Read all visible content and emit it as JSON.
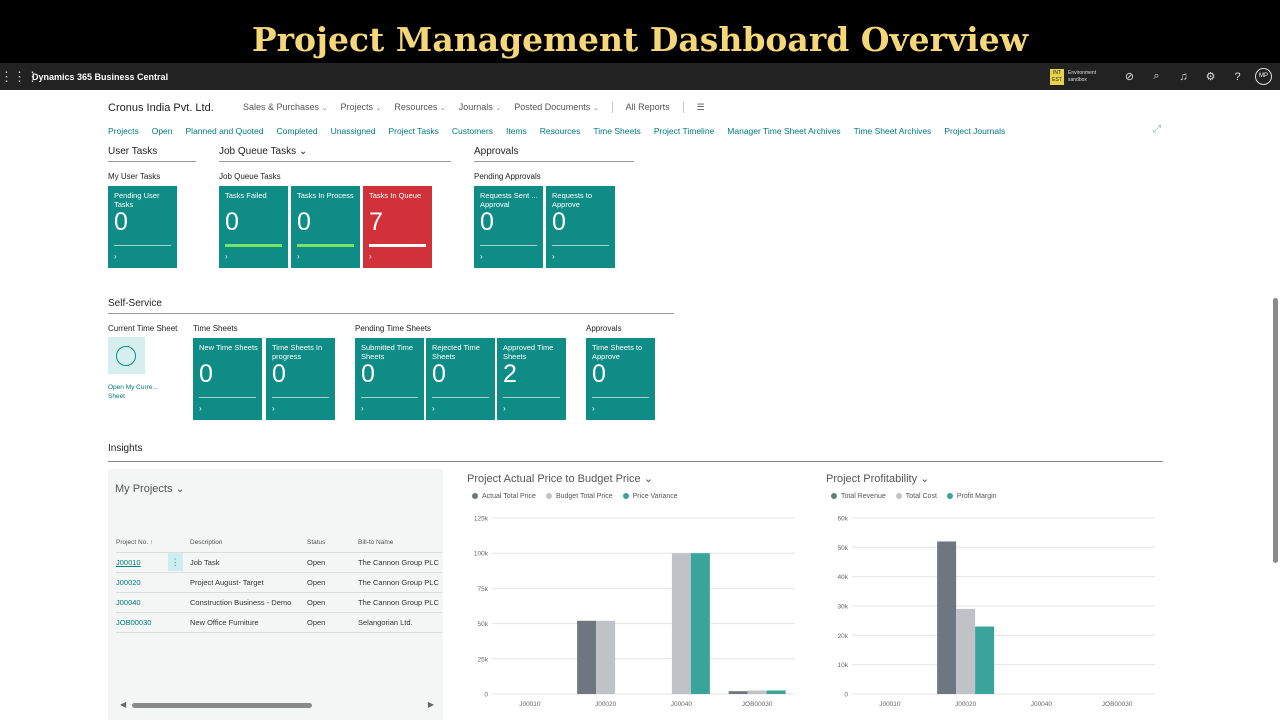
{
  "banner": "Project Management Dashboard Overview",
  "app": {
    "name": "Dynamics 365 Business Central",
    "env_badge": "INT EST",
    "env_label": "Environment",
    "env_name": "sandbox",
    "user_initials": "MP",
    "icons": [
      "waffle-icon",
      "copilot-icon",
      "search-icon",
      "bell-icon",
      "gear-icon",
      "help-icon"
    ]
  },
  "company": "Cronus India Pvt. Ltd.",
  "nav": [
    "Sales & Purchases",
    "Projects",
    "Resources",
    "Journals",
    "Posted Documents"
  ],
  "nav_reports": "All Reports",
  "sublinks": [
    "Projects",
    "Open",
    "Planned and Quoted",
    "Completed",
    "Unassigned",
    "Project Tasks",
    "Customers",
    "Items",
    "Resources",
    "Time Sheets",
    "Project Timeline",
    "Manager Time Sheet Archives",
    "Time Sheet Archives",
    "Project Journals"
  ],
  "sections": {
    "user_tasks": "User Tasks",
    "job_queue": "Job Queue Tasks",
    "approvals": "Approvals",
    "self_service": "Self-Service",
    "insights": "Insights"
  },
  "groups": {
    "my_user_tasks": "My User Tasks",
    "job_queue_tasks": "Job Queue Tasks",
    "pending_approvals": "Pending Approvals",
    "current_time_sheet": "Current Time Sheet",
    "time_sheets": "Time Sheets",
    "pending_time_sheets": "Pending Time Sheets",
    "approvals": "Approvals"
  },
  "tiles": {
    "pending_user_tasks": {
      "label": "Pending User Tasks",
      "value": "0"
    },
    "tasks_failed": {
      "label": "Tasks Failed",
      "value": "0"
    },
    "tasks_in_process": {
      "label": "Tasks In Process",
      "value": "0"
    },
    "tasks_in_queue": {
      "label": "Tasks In Queue",
      "value": "7"
    },
    "requests_sent": {
      "label": "Requests Sent ... Approval",
      "value": "0"
    },
    "requests_to_approve": {
      "label": "Requests to Approve",
      "value": "0"
    },
    "new_time_sheets": {
      "label": "New Time Sheets",
      "value": "0"
    },
    "time_sheets_in_progress": {
      "label": "Time Sheets In progress",
      "value": "0"
    },
    "submitted_time_sheets": {
      "label": "Submitted Time Sheets",
      "value": "0"
    },
    "rejected_time_sheets": {
      "label": "Rejected Time Sheets",
      "value": "0"
    },
    "approved_time_sheets": {
      "label": "Approved Time Sheets",
      "value": "2"
    },
    "time_sheets_to_approve": {
      "label": "Time Sheets to Approve",
      "value": "0"
    },
    "chevron": "›"
  },
  "current_time_sheet_link": "Open My Curre... Sheet",
  "my_projects": {
    "title": "My Projects",
    "columns": [
      "Project No. ↑",
      "Description",
      "Status",
      "Bill-to Name"
    ],
    "rows": [
      {
        "no": "J00010",
        "desc": "Job Task",
        "status": "Open",
        "bill": "The Cannon Group PLC"
      },
      {
        "no": "J00020",
        "desc": "Project August- Target",
        "status": "Open",
        "bill": "The Cannon Group PLC"
      },
      {
        "no": "J00040",
        "desc": "Construction Business - Demo",
        "status": "Open",
        "bill": "The Cannon Group PLC"
      },
      {
        "no": "JOB00030",
        "desc": "New Office Furniture",
        "status": "Open",
        "bill": "Selangorian Ltd."
      }
    ]
  },
  "chart_data": [
    {
      "type": "bar",
      "title": "Project Actual Price to Budget Price",
      "categories": [
        "J00010",
        "J00020",
        "J00040",
        "JOB00030"
      ],
      "series": [
        {
          "name": "Actual Total Price",
          "color": "#6e7780",
          "values": [
            0,
            52000,
            0,
            2000
          ]
        },
        {
          "name": "Budget Total Price",
          "color": "#bfc3c7",
          "values": [
            0,
            52000,
            100000,
            2500
          ]
        },
        {
          "name": "Price Variance",
          "color": "#3aa39a",
          "values": [
            0,
            0,
            100000,
            2500
          ]
        }
      ],
      "yticks": [
        "0",
        "25k",
        "50k",
        "75k",
        "100k",
        "125k"
      ],
      "ylim": [
        0,
        125000
      ]
    },
    {
      "type": "bar",
      "title": "Project Profitability",
      "categories": [
        "J00010",
        "J00020",
        "J00040",
        "JOB00030"
      ],
      "series": [
        {
          "name": "Total Revenue",
          "color": "#6e7780",
          "values": [
            0,
            52000,
            0,
            0
          ]
        },
        {
          "name": "Total Cost",
          "color": "#bfc3c7",
          "values": [
            0,
            29000,
            0,
            0
          ]
        },
        {
          "name": "Profit Margin",
          "color": "#3aa39a",
          "values": [
            0,
            23000,
            0,
            0
          ]
        }
      ],
      "yticks": [
        "0",
        "10k",
        "20k",
        "30k",
        "40k",
        "50k",
        "60k"
      ],
      "ylim": [
        0,
        60000
      ]
    }
  ]
}
